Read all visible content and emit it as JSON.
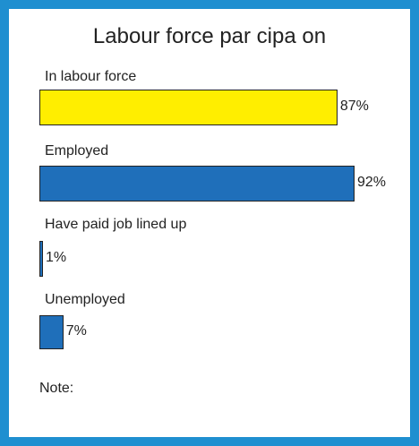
{
  "chart_data": {
    "type": "bar",
    "title": "Labour force par  cipa  on",
    "categories": [
      "In labour force",
      "Employed",
      "Have paid job lined up",
      "Unemployed"
    ],
    "values": [
      87,
      92,
      1,
      7
    ],
    "value_labels": [
      "87%",
      "92%",
      "1%",
      "7%"
    ],
    "colors": [
      "#ffee00",
      "#1f6fba",
      "#1f6fba",
      "#1f6fba"
    ],
    "unit": "%",
    "grid": false,
    "note_label": "Note:"
  }
}
